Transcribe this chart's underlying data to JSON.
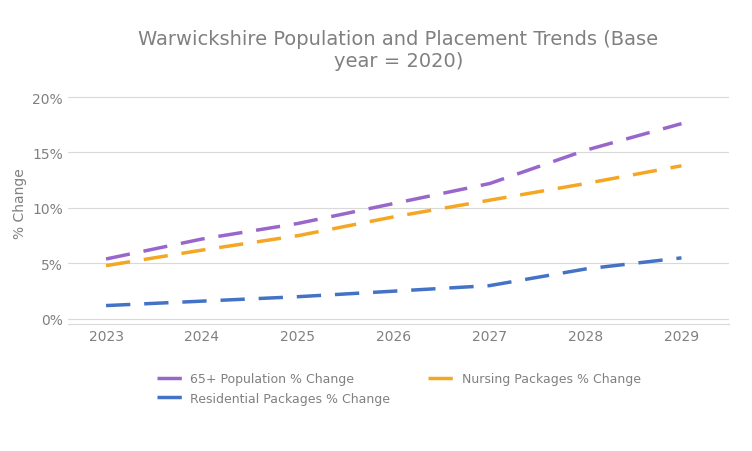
{
  "title": "Warwickshire Population and Placement Trends (Base\nyear = 2020)",
  "ylabel": "% Change",
  "years": [
    2023,
    2024,
    2025,
    2026,
    2027,
    2028,
    2029
  ],
  "series_order": [
    "65+ Population % Change",
    "Nursing Packages % Change",
    "Residential Packages % Change"
  ],
  "series": {
    "65+ Population % Change": {
      "values": [
        0.054,
        0.072,
        0.086,
        0.104,
        0.122,
        0.152,
        0.176
      ],
      "color": "#9966cc",
      "linewidth": 2.5
    },
    "Nursing Packages % Change": {
      "values": [
        0.048,
        0.062,
        0.075,
        0.092,
        0.107,
        0.122,
        0.138
      ],
      "color": "#f5a623",
      "linewidth": 2.5
    },
    "Residential Packages % Change": {
      "values": [
        0.012,
        0.016,
        0.02,
        0.025,
        0.03,
        0.045,
        0.055
      ],
      "color": "#4472c4",
      "linewidth": 2.5
    }
  },
  "legend_order": [
    "65+ Population % Change",
    "Residential Packages % Change",
    "Nursing Packages % Change"
  ],
  "ylim": [
    -0.005,
    0.215
  ],
  "yticks": [
    0.0,
    0.05,
    0.1,
    0.15,
    0.2
  ],
  "ytick_labels": [
    "0%",
    "5%",
    "10%",
    "15%",
    "20%"
  ],
  "background_color": "#ffffff",
  "grid_color": "#d9d9d9",
  "title_fontsize": 14,
  "title_color": "#808080",
  "legend_fontsize": 9,
  "axis_fontsize": 10,
  "tick_color": "#808080"
}
